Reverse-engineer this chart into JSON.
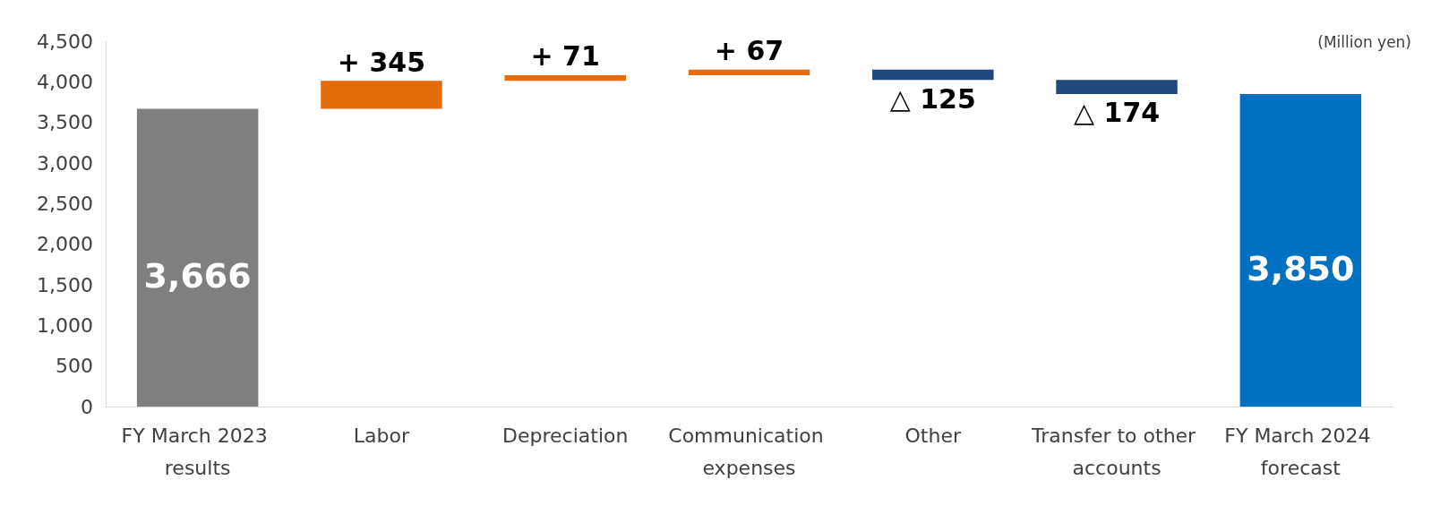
{
  "chart_data": {
    "type": "bar",
    "categories": [
      "FY March 2023 results",
      "Labor",
      "Depreciation",
      "Communication expenses",
      "Other",
      "Transfer to other accounts",
      "FY March 2024 forecast"
    ],
    "values": [
      3666,
      345,
      71,
      67,
      -125,
      -174,
      3850
    ],
    "base": [
      0,
      3666,
      4011,
      4082,
      4149,
      4024,
      0
    ],
    "colors": [
      "#7f7f7f",
      "#e46c0a",
      "#e46c0a",
      "#e46c0a",
      "#1f497d",
      "#1f497d",
      "#0070c0"
    ],
    "value_labels": [
      "3,666",
      "+ 345",
      "+ 71",
      "+ 67",
      "△ 125",
      "△ 174",
      "3,850"
    ],
    "ylim": [
      0,
      4500
    ],
    "yticks": [
      0,
      500,
      {
        "value": 1000,
        "label": "1,000"
      },
      {
        "value": 1500,
        "label": "1,500"
      },
      {
        "value": 2000,
        "label": "2,000"
      },
      {
        "value": 2500,
        "label": "2,500"
      },
      {
        "value": 3000,
        "label": "3,000"
      },
      {
        "value": 3500,
        "label": "3,500"
      },
      {
        "value": 4000,
        "label": "4,000"
      },
      {
        "value": 4500,
        "label": "4,500"
      }
    ],
    "grid": false,
    "annotations": [
      "(Million yen)"
    ]
  }
}
